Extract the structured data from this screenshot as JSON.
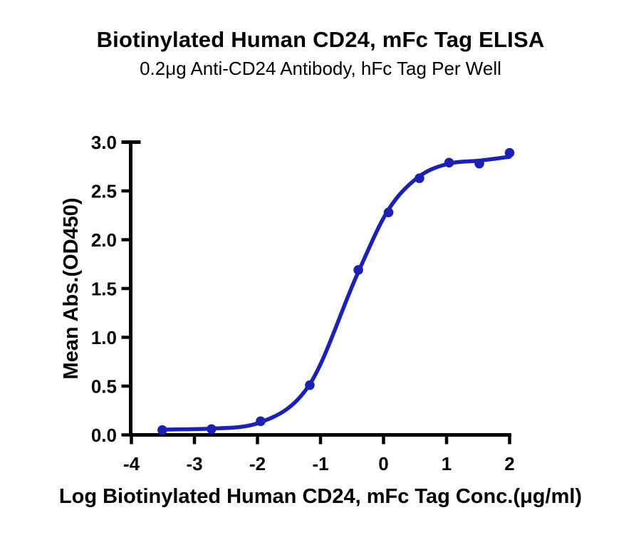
{
  "chart_data": {
    "type": "scatter",
    "title": "Biotinylated Human CD24, mFc Tag ELISA",
    "subtitle": "0.2μg Anti-CD24 Antibody, hFc Tag Per Well",
    "xlabel": "Log Biotinylated Human CD24, mFc Tag Conc.(μg/ml)",
    "ylabel": "Mean Abs.(OD450)",
    "xlim": [
      -4,
      2
    ],
    "ylim": [
      0,
      3
    ],
    "x_tick_labels": [
      "-4",
      "-3",
      "-2",
      "-1",
      "0",
      "1",
      "2"
    ],
    "y_tick_labels": [
      "0.0",
      "0.5",
      "1.0",
      "1.5",
      "2.0",
      "2.5",
      "3.0"
    ],
    "grid": false,
    "legend": false,
    "series": [
      {
        "name": "Mean Abs.(OD450) measured points",
        "type": "scatter",
        "x": [
          -3.51,
          -2.73,
          -1.95,
          -1.17,
          -0.4,
          0.08,
          0.57,
          1.04,
          1.52,
          2.0
        ],
        "y": [
          0.05,
          0.06,
          0.14,
          0.51,
          1.69,
          2.28,
          2.63,
          2.79,
          2.78,
          2.89
        ]
      },
      {
        "name": "4PL best-fit dose-response curve",
        "type": "line",
        "x": [
          -3.51,
          -2.73,
          -1.95,
          -1.17,
          -0.4,
          0.08,
          0.57,
          1.04,
          1.52,
          2.0
        ],
        "y": [
          0.055,
          0.065,
          0.13,
          0.52,
          1.67,
          2.31,
          2.65,
          2.78,
          2.81,
          2.85
        ]
      }
    ],
    "colors": {
      "curve": "#1c20b4",
      "point": "#1c20b4",
      "axis": "#000000",
      "text": "#000000",
      "background": "#ffffff"
    }
  }
}
